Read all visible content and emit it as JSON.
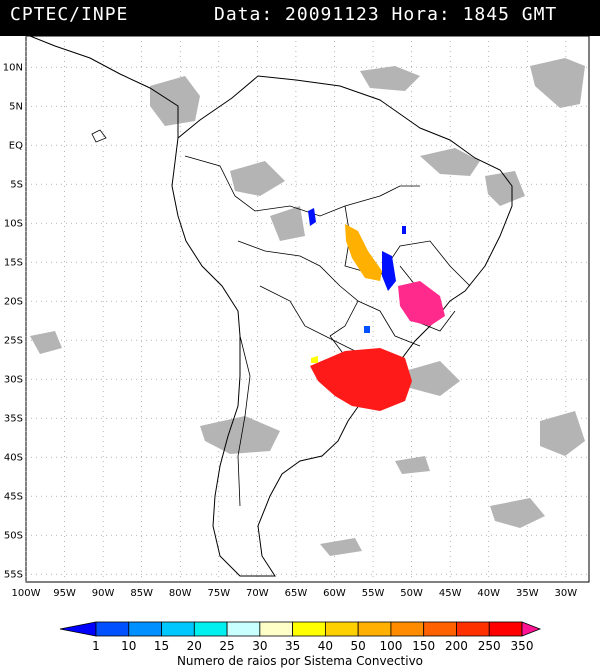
{
  "header": {
    "title": "CPTEC/INPE",
    "datetime": "Data: 20091123 Hora: 1845 GMT"
  },
  "map": {
    "lat_range": [
      -56,
      14
    ],
    "lon_range": [
      -100,
      -27
    ],
    "lat_labels": [
      "10N",
      "5N",
      "EQ",
      "5S",
      "10S",
      "15S",
      "20S",
      "25S",
      "30S",
      "35S",
      "40S",
      "45S",
      "50S",
      "55S"
    ],
    "lon_labels": [
      "100W",
      "95W",
      "90W",
      "85W",
      "80W",
      "75W",
      "70W",
      "65W",
      "60W",
      "55W",
      "50W",
      "45W",
      "40W",
      "35W",
      "30W"
    ],
    "cloud_color": "#b4b4b4",
    "lightning_regions": [
      {
        "name": "rio-grande-do-sul-uruguay-system",
        "color": "#ff1a1a",
        "center": [
          -55.5,
          -30.5
        ]
      },
      {
        "name": "south-east-brazil-system",
        "color": "#ff2a8c",
        "center": [
          -46.5,
          -21.5
        ]
      },
      {
        "name": "central-brazil-system",
        "color": "#ffb000",
        "center": [
          -56.0,
          -15.5
        ]
      },
      {
        "name": "mato-grosso-cells",
        "color": "#0010ff",
        "center": [
          -52.5,
          -17.5
        ]
      }
    ]
  },
  "colorbar": {
    "labels": [
      "1",
      "10",
      "15",
      "20",
      "25",
      "30",
      "35",
      "40",
      "50",
      "100",
      "150",
      "200",
      "250",
      "350"
    ],
    "colors": [
      "#0000ff",
      "#0050ff",
      "#0090ff",
      "#00c8ff",
      "#00f0f0",
      "#c8ffff",
      "#ffffc8",
      "#ffff00",
      "#ffd000",
      "#ffb000",
      "#ff8c00",
      "#ff6000",
      "#ff3000",
      "#ff0000",
      "#ff1493"
    ],
    "caption": "Numero de raios por Sistema Convectivo"
  }
}
